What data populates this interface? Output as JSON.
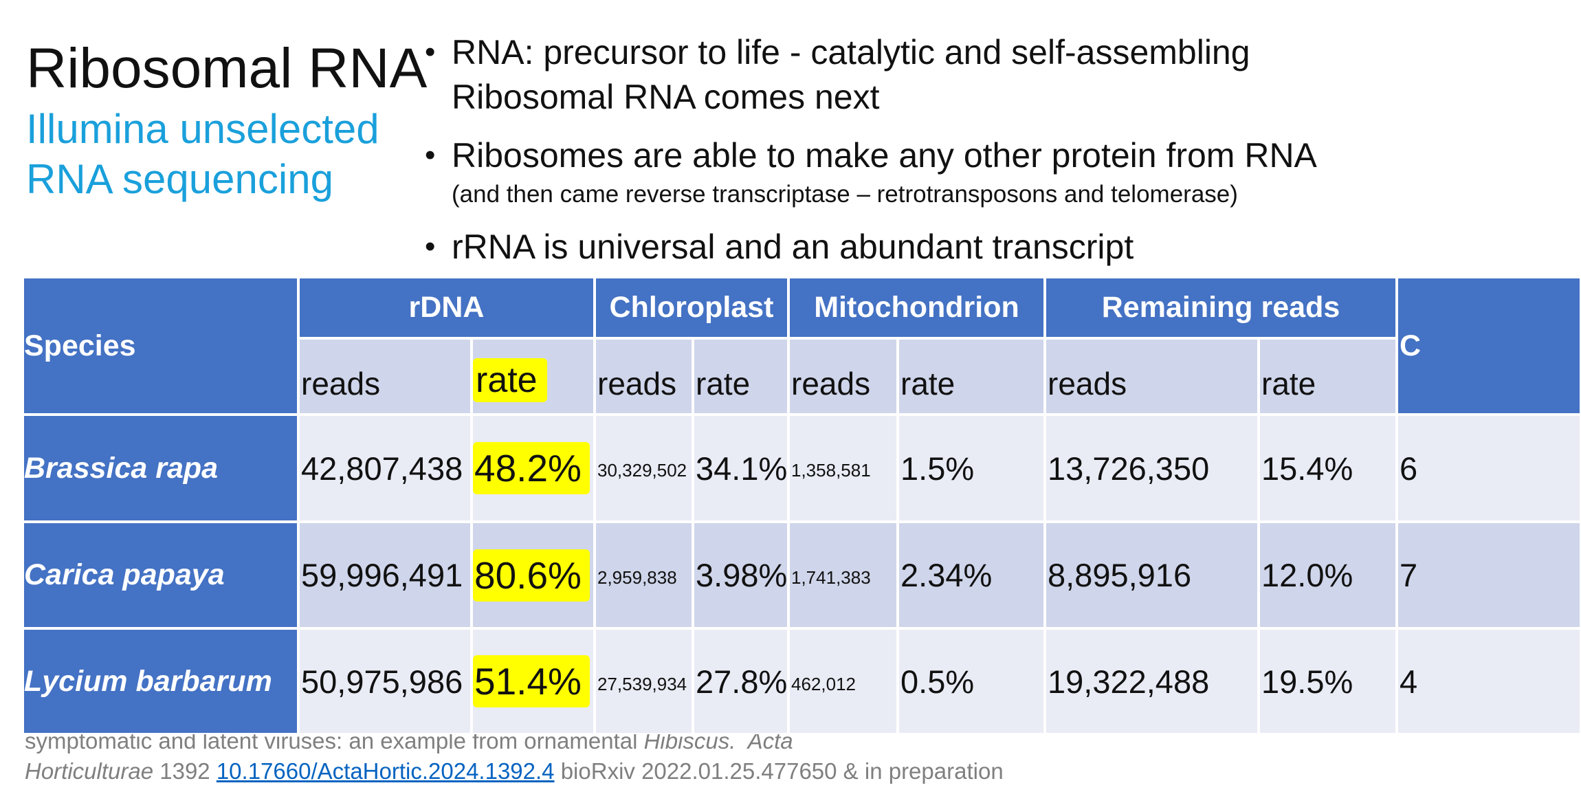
{
  "header": {
    "title": "Ribosomal RNA",
    "subtitle": [
      "Illumina unselected",
      "RNA sequencing"
    ]
  },
  "bullets": [
    {
      "lines": [
        "RNA: precursor to life - catalytic and self-assembling",
        "Ribosomal RNA comes next"
      ]
    },
    {
      "lines": [
        "Ribosomes are able to make any other protein from RNA"
      ],
      "note": "(and then came reverse transcriptase – retrotransposons and telomerase)"
    },
    {
      "lines": [
        "rRNA is universal and an abundant transcript"
      ]
    }
  ],
  "table": {
    "species_header": "Species",
    "groups": [
      "rDNA",
      "Chloroplast",
      "Mitochondrion",
      "Remaining reads"
    ],
    "subheaders": [
      "reads",
      "rate",
      "reads",
      "rate",
      "reads",
      "rate",
      "reads",
      "rate"
    ],
    "rows": [
      {
        "species": "Brassica rapa",
        "cells": [
          "42,807,438",
          "48.2%",
          "30,329,502",
          "34.1%",
          "1,358,581",
          "1.5%",
          "13,726,350",
          "15.4%"
        ]
      },
      {
        "species": "Carica papaya",
        "cells": [
          "59,996,491",
          "80.6%",
          "2,959,838",
          "3.98%",
          "1,741,383",
          "2.34%",
          "8,895,916",
          "12.0%"
        ]
      },
      {
        "species": "Lycium barbarum",
        "cells": [
          "50,975,986",
          "51.4%",
          "27,539,934",
          "27.8%",
          "462,012",
          "0.5%",
          "19,322,488",
          "19.5%"
        ]
      }
    ],
    "clipped_column": {
      "header": "C",
      "cells": [
        "6",
        "7",
        "4"
      ]
    }
  },
  "footer": {
    "line1": [
      "symptomatic and latent viruses: an example from ornamental ",
      "Hibiscus.",
      "  Acta"
    ],
    "line2": [
      "Horticulturae",
      " 1392 ",
      "10.17660/ActaHortic.2024.1392.4",
      " bioRxiv 2022.01.25.477650 & in preparation"
    ]
  }
}
